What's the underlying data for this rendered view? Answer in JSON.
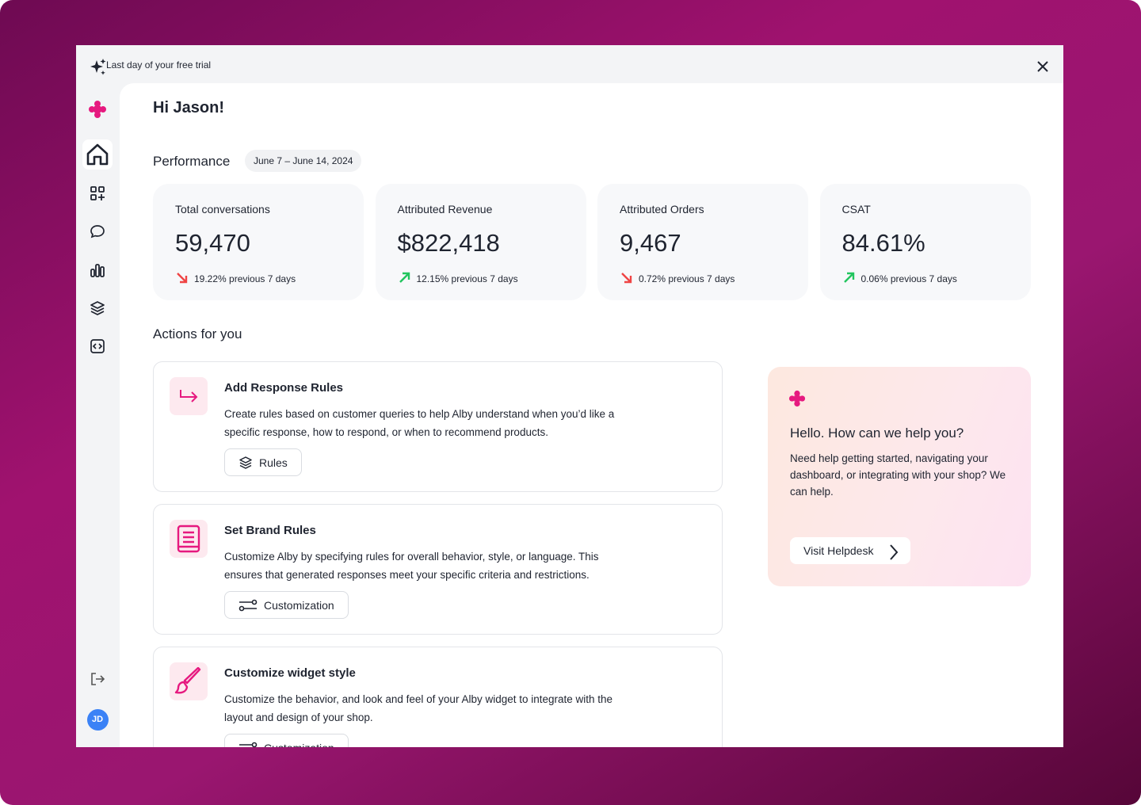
{
  "banner": {
    "text": "Last day of your free trial"
  },
  "greeting": "Hi Jason!",
  "performance": {
    "title": "Performance",
    "date_range": "June 7 – June 14, 2024",
    "cards": [
      {
        "label": "Total conversations",
        "value": "59,470",
        "change": "19.22% previous 7 days",
        "trend": "down"
      },
      {
        "label": "Attributed Revenue",
        "value": "$822,418",
        "change": "12.15% previous 7 days",
        "trend": "up"
      },
      {
        "label": "Attributed Orders",
        "value": "9,467",
        "change": "0.72% previous 7 days",
        "trend": "down"
      },
      {
        "label": "CSAT",
        "value": "84.61%",
        "change": "0.06% previous 7 days",
        "trend": "up"
      }
    ]
  },
  "actions": {
    "title": "Actions for you",
    "items": [
      {
        "title": "Add Response Rules",
        "description": "Create rules based on customer queries to help Alby understand when you’d like a specific response, how to respond, or when to recommend products.",
        "button": "Rules",
        "icon": "arrow"
      },
      {
        "title": "Set Brand Rules",
        "description": "Customize Alby by specifying rules for overall behavior, style, or language. This ensures that generated responses meet your specific criteria and restrictions.",
        "button": "Customization",
        "icon": "book"
      },
      {
        "title": "Customize widget style",
        "description": "Customize the behavior, and look and feel of your Alby widget to integrate with the layout and design of your shop.",
        "button": "Customization",
        "icon": "brush"
      }
    ]
  },
  "help": {
    "title": "Hello. How can we help you?",
    "description": "Need help getting started, navigating your dashboard, or integrating with your shop? We can help.",
    "button": "Visit Helpdesk"
  },
  "user": {
    "initials": "JD"
  }
}
